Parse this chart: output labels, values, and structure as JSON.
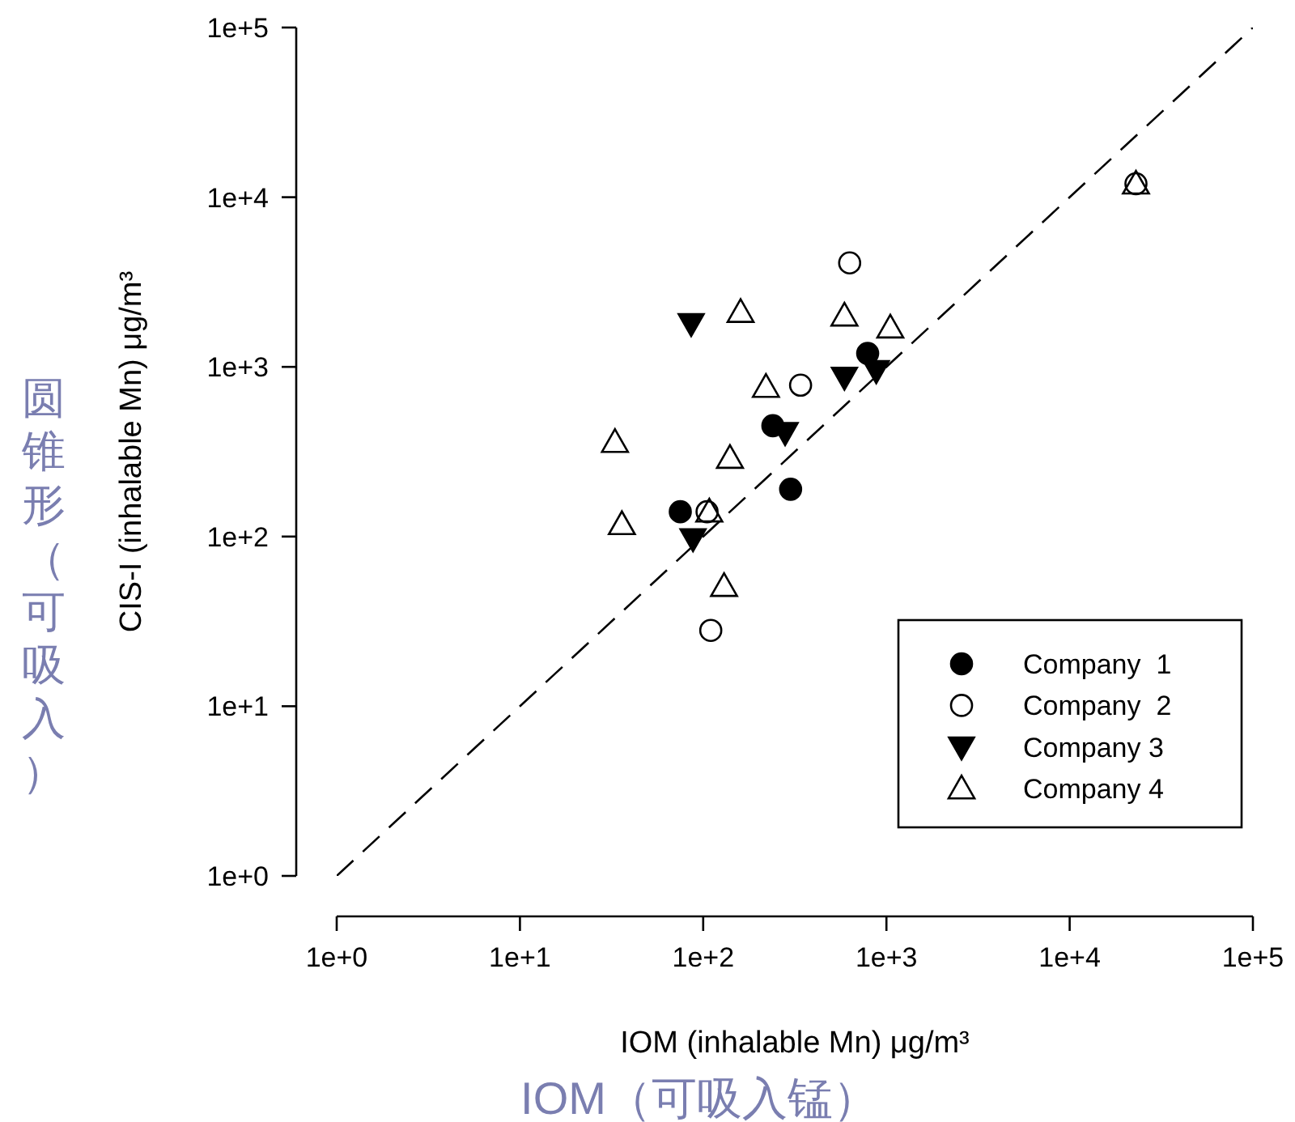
{
  "chart_data": {
    "type": "scatter",
    "xlabel": "IOM (inhalable Mn) μg/m³",
    "ylabel": "CIS-I (inhalable Mn) μg/m³",
    "annotations": [
      "圆锥形（可吸入）",
      "IOM（可吸入锰）"
    ],
    "log": "xy",
    "grid": false,
    "legend": "bottom right",
    "xlim": [
      1,
      100000
    ],
    "ylim": [
      1,
      100000
    ],
    "xticks": [
      {
        "value": 1,
        "label": "1e+0"
      },
      {
        "value": 10,
        "label": "1e+1"
      },
      {
        "value": 100,
        "label": "1e+2"
      },
      {
        "value": 1000,
        "label": "1e+3"
      },
      {
        "value": 10000,
        "label": "1e+4"
      },
      {
        "value": 100000,
        "label": "1e+5"
      }
    ],
    "yticks": [
      {
        "value": 1,
        "label": "1e+0"
      },
      {
        "value": 10,
        "label": "1e+1"
      },
      {
        "value": 100,
        "label": "1e+2"
      },
      {
        "value": 1000,
        "label": "1e+3"
      },
      {
        "value": 10000,
        "label": "1e+4"
      },
      {
        "value": 100000,
        "label": "1e+5"
      }
    ],
    "series": [
      {
        "name": "Company  1",
        "color": "#000000",
        "marker": "circle",
        "x": [
          75,
          240,
          300,
          790
        ],
        "values": [
          140,
          450,
          190,
          1200
        ]
      },
      {
        "name": "Company  2",
        "color": "#000000",
        "marker": "circle-open",
        "x": [
          630,
          340,
          105,
          110,
          23000
        ],
        "values": [
          4100,
          780,
          140,
          28,
          12000
        ]
      },
      {
        "name": "Company 3",
        "color": "#000000",
        "marker": "triangle-down",
        "x": [
          86,
          280,
          590,
          880,
          88
        ],
        "values": [
          1800,
          410,
          870,
          950,
          97
        ]
      },
      {
        "name": "Company 4",
        "color": "#000000",
        "marker": "triangle-open",
        "x": [
          160,
          590,
          1050,
          220,
          33,
          140,
          36,
          108,
          130,
          23000
        ],
        "values": [
          2100,
          2000,
          1700,
          760,
          360,
          290,
          118,
          140,
          51,
          12000
        ]
      },
      {
        "type": "line",
        "color": "#000000",
        "line_style": "dashed",
        "marker": "none",
        "x": [
          1,
          100000
        ],
        "values": [
          1,
          100000
        ]
      }
    ]
  }
}
